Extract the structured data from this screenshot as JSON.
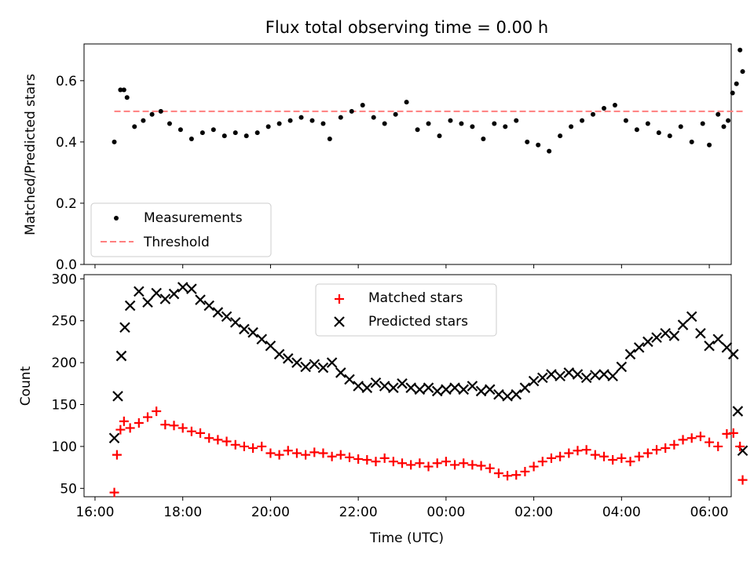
{
  "title": "Flux total observing time = 0.00 h",
  "colors": {
    "matched": "#ff0000",
    "predicted": "#000000",
    "threshold": "#ff7f7f",
    "measurements": "#000000"
  },
  "chart_data": [
    {
      "type": "scatter",
      "ylabel": "Matched/Predicted stars",
      "ylim": [
        0.0,
        0.72
      ],
      "yticks": [
        "0.0",
        "0.2",
        "0.4",
        "0.6"
      ],
      "xlim": [
        15.75,
        30.5
      ],
      "grid": false,
      "legend": "lower-left",
      "series": [
        {
          "name": "Measurements",
          "marker": "dot",
          "x": [
            16.44,
            16.58,
            16.66,
            16.73,
            16.9,
            17.1,
            17.3,
            17.5,
            17.7,
            17.95,
            18.2,
            18.45,
            18.7,
            18.95,
            19.2,
            19.45,
            19.7,
            19.95,
            20.2,
            20.45,
            20.7,
            20.95,
            21.2,
            21.35,
            21.6,
            21.85,
            22.1,
            22.35,
            22.6,
            22.85,
            23.1,
            23.35,
            23.6,
            23.85,
            24.1,
            24.35,
            24.6,
            24.85,
            25.1,
            25.35,
            25.6,
            25.85,
            26.1,
            26.35,
            26.6,
            26.85,
            27.1,
            27.35,
            27.6,
            27.85,
            28.1,
            28.35,
            28.6,
            28.85,
            29.1,
            29.35,
            29.6,
            29.85,
            30.0,
            30.2,
            30.33,
            30.43,
            30.53,
            30.62,
            30.7,
            30.76
          ],
          "y": [
            0.4,
            0.57,
            0.57,
            0.545,
            0.45,
            0.47,
            0.49,
            0.5,
            0.46,
            0.44,
            0.41,
            0.43,
            0.44,
            0.42,
            0.43,
            0.42,
            0.43,
            0.45,
            0.46,
            0.47,
            0.48,
            0.47,
            0.46,
            0.41,
            0.48,
            0.5,
            0.52,
            0.48,
            0.46,
            0.49,
            0.53,
            0.44,
            0.46,
            0.42,
            0.47,
            0.46,
            0.45,
            0.41,
            0.46,
            0.45,
            0.47,
            0.4,
            0.39,
            0.37,
            0.42,
            0.45,
            0.47,
            0.49,
            0.51,
            0.52,
            0.47,
            0.44,
            0.46,
            0.43,
            0.42,
            0.45,
            0.4,
            0.46,
            0.39,
            0.49,
            0.45,
            0.47,
            0.56,
            0.59,
            0.7,
            0.63
          ]
        },
        {
          "name": "Threshold",
          "line": "dashed",
          "x": [
            16.44,
            30.76
          ],
          "y": [
            0.5,
            0.5
          ]
        }
      ]
    },
    {
      "type": "scatter",
      "xlabel": "Time (UTC)",
      "ylabel": "Count",
      "ylim": [
        40,
        305
      ],
      "yticks": [
        "50",
        "100",
        "150",
        "200",
        "250",
        "300"
      ],
      "xlim": [
        15.75,
        30.5
      ],
      "xticks": [
        16,
        18,
        20,
        22,
        24,
        26,
        28,
        30
      ],
      "xticklabels": [
        "16:00",
        "18:00",
        "20:00",
        "22:00",
        "00:00",
        "02:00",
        "04:00",
        "06:00"
      ],
      "grid": false,
      "legend": "top-center",
      "series": [
        {
          "name": "Matched stars",
          "marker": "+",
          "x": [
            16.44,
            16.5,
            16.58,
            16.66,
            16.8,
            17.0,
            17.2,
            17.4,
            17.6,
            17.8,
            18.0,
            18.2,
            18.4,
            18.6,
            18.8,
            19.0,
            19.2,
            19.4,
            19.6,
            19.8,
            20.0,
            20.2,
            20.4,
            20.6,
            20.8,
            21.0,
            21.2,
            21.4,
            21.6,
            21.8,
            22.0,
            22.2,
            22.4,
            22.6,
            22.8,
            23.0,
            23.2,
            23.4,
            23.6,
            23.8,
            24.0,
            24.2,
            24.4,
            24.6,
            24.8,
            25.0,
            25.2,
            25.4,
            25.6,
            25.8,
            26.0,
            26.2,
            26.4,
            26.6,
            26.8,
            27.0,
            27.2,
            27.4,
            27.6,
            27.8,
            28.0,
            28.2,
            28.4,
            28.6,
            28.8,
            29.0,
            29.2,
            29.4,
            29.6,
            29.8,
            30.0,
            30.2,
            30.4,
            30.55,
            30.7,
            30.76
          ],
          "y": [
            45,
            90,
            120,
            130,
            122,
            128,
            135,
            142,
            126,
            125,
            122,
            118,
            116,
            110,
            108,
            106,
            102,
            100,
            98,
            100,
            92,
            90,
            95,
            92,
            90,
            93,
            92,
            88,
            90,
            87,
            85,
            84,
            82,
            86,
            82,
            80,
            78,
            80,
            76,
            80,
            82,
            78,
            80,
            78,
            77,
            74,
            68,
            65,
            66,
            70,
            76,
            82,
            86,
            88,
            92,
            95,
            96,
            90,
            88,
            84,
            86,
            82,
            88,
            92,
            96,
            98,
            102,
            108,
            110,
            112,
            105,
            100,
            115,
            116,
            100,
            60
          ]
        },
        {
          "name": "Predicted stars",
          "marker": "x",
          "x": [
            16.44,
            16.52,
            16.6,
            16.68,
            16.8,
            17.0,
            17.2,
            17.4,
            17.6,
            17.8,
            18.0,
            18.2,
            18.4,
            18.6,
            18.8,
            19.0,
            19.2,
            19.4,
            19.6,
            19.8,
            20.0,
            20.2,
            20.4,
            20.6,
            20.8,
            21.0,
            21.2,
            21.4,
            21.6,
            21.8,
            22.0,
            22.2,
            22.4,
            22.6,
            22.8,
            23.0,
            23.2,
            23.4,
            23.6,
            23.8,
            24.0,
            24.2,
            24.4,
            24.6,
            24.8,
            25.0,
            25.2,
            25.4,
            25.6,
            25.8,
            26.0,
            26.2,
            26.4,
            26.6,
            26.8,
            27.0,
            27.2,
            27.4,
            27.6,
            27.8,
            28.0,
            28.2,
            28.4,
            28.6,
            28.8,
            29.0,
            29.2,
            29.4,
            29.6,
            29.8,
            30.0,
            30.2,
            30.4,
            30.55,
            30.65,
            30.76
          ],
          "y": [
            110,
            160,
            208,
            242,
            268,
            285,
            272,
            283,
            276,
            282,
            290,
            288,
            275,
            268,
            260,
            255,
            248,
            240,
            236,
            228,
            220,
            210,
            205,
            200,
            195,
            198,
            194,
            200,
            188,
            180,
            172,
            170,
            176,
            172,
            170,
            175,
            170,
            168,
            170,
            166,
            168,
            170,
            168,
            172,
            166,
            168,
            162,
            160,
            162,
            170,
            178,
            182,
            186,
            184,
            188,
            186,
            182,
            185,
            186,
            184,
            195,
            210,
            218,
            225,
            230,
            235,
            232,
            245,
            255,
            235,
            220,
            228,
            218,
            210,
            142,
            95
          ]
        }
      ]
    }
  ]
}
